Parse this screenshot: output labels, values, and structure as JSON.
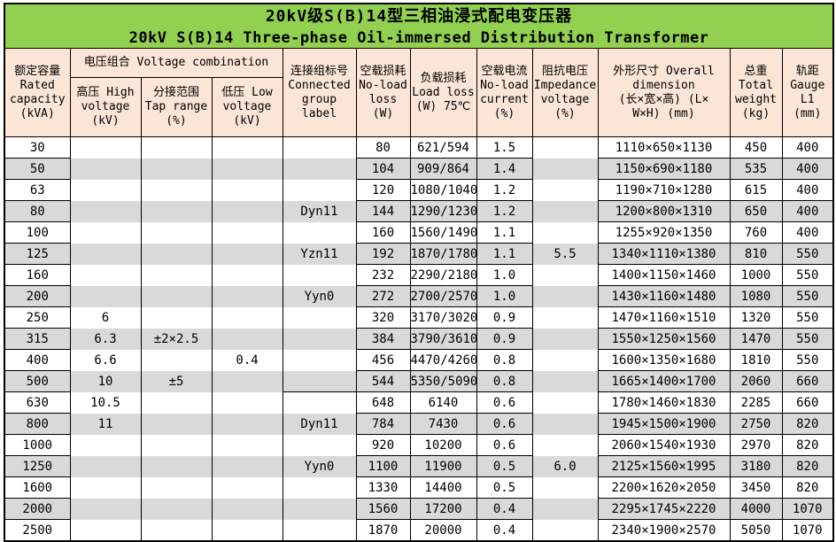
{
  "title": {
    "line1_zh": "20kV级S(B)14型三相油浸式配电变压器",
    "line2_en": "20kV S(B)14 Three-phase Oil-immersed Distribution Transformer"
  },
  "colors": {
    "title_bg": "#92D050",
    "header_bg": "#FBE5D6",
    "stripe_bg": "#D9D9D9",
    "border": "#000000"
  },
  "header": {
    "rated_capacity": "额定容量\nRated\ncapacity\n(kVA)",
    "voltage_combination": "电压组合 Voltage combination",
    "high_voltage": "高压 High\nvoltage\n(kV)",
    "tap_range": "分接范围\nTap range\n(%)",
    "low_voltage": "低压 Low\nvoltage\n(kV)",
    "connected_group": "连接组标号\nConnected\ngroup\nlabel",
    "no_load_loss": "空载损耗\nNo-load\nloss\n(W)",
    "load_loss": "负载损耗\nLoad loss\n(W) 75℃",
    "no_load_current": "空载电流\nNo-load\ncurrent\n(%)",
    "impedance_voltage": "阻抗电压\nImpedance\nvoltage\n(%)",
    "overall_dimension": "外形尺寸 Overall\ndimension\n(长×宽×高) (L×\nW×H) (mm)",
    "total_weight": "总重\nTotal\nweight\n(kg)",
    "gauge": "轨距\nGauge\nL1\n(mm)"
  },
  "columns": [
    "rated-capacity",
    "high-voltage",
    "tap-range",
    "low-voltage",
    "connected-group",
    "no-load-loss",
    "load-loss",
    "no-load-current",
    "impedance-voltage",
    "overall-dimension",
    "total-weight",
    "gauge"
  ],
  "rows": [
    [
      "30",
      "",
      "",
      "",
      "",
      "80",
      "621/594",
      "1.5",
      "",
      "1110×650×1130",
      "450",
      "400"
    ],
    [
      "50",
      "",
      "",
      "",
      "",
      "104",
      "909/864",
      "1.4",
      "",
      "1150×690×1180",
      "535",
      "400"
    ],
    [
      "63",
      "",
      "",
      "",
      "",
      "120",
      "1080/1040",
      "1.2",
      "",
      "1190×710×1280",
      "615",
      "400"
    ],
    [
      "80",
      "",
      "",
      "",
      "Dyn11",
      "144",
      "1290/1230",
      "1.2",
      "",
      "1200×800×1310",
      "650",
      "400"
    ],
    [
      "100",
      "",
      "",
      "",
      "",
      "160",
      "1560/1490",
      "1.1",
      "",
      "1255×920×1350",
      "760",
      "400"
    ],
    [
      "125",
      "",
      "",
      "",
      "Yzn11",
      "192",
      "1870/1780",
      "1.1",
      "5.5",
      "1340×1110×1380",
      "810",
      "550"
    ],
    [
      "160",
      "",
      "",
      "",
      "",
      "232",
      "2290/2180",
      "1.0",
      "",
      "1400×1150×1460",
      "1000",
      "550"
    ],
    [
      "200",
      "",
      "",
      "",
      "Yyn0",
      "272",
      "2700/2570",
      "1.0",
      "",
      "1430×1160×1480",
      "1080",
      "550"
    ],
    [
      "250",
      "6",
      "",
      "",
      "",
      "320",
      "3170/3020",
      "0.9",
      "",
      "1470×1160×1510",
      "1320",
      "550"
    ],
    [
      "315",
      "6.3",
      "±2×2.5",
      "",
      "",
      "384",
      "3790/3610",
      "0.9",
      "",
      "1550×1250×1560",
      "1470",
      "550"
    ],
    [
      "400",
      "6.6",
      "",
      "0.4",
      "",
      "456",
      "4470/4260",
      "0.8",
      "",
      "1600×1350×1680",
      "1810",
      "550"
    ],
    [
      "500",
      "10",
      "±5",
      "",
      "",
      "544",
      "5350/5090",
      "0.8",
      "",
      "1665×1400×1700",
      "2060",
      "660"
    ],
    [
      "630",
      "10.5",
      "",
      "",
      "",
      "648",
      "6140",
      "0.6",
      "",
      "1780×1460×1830",
      "2285",
      "660"
    ],
    [
      "800",
      "11",
      "",
      "",
      "Dyn11",
      "784",
      "7430",
      "0.6",
      "",
      "1945×1500×1900",
      "2750",
      "820"
    ],
    [
      "1000",
      "",
      "",
      "",
      "",
      "920",
      "10200",
      "0.6",
      "",
      "2060×1540×1930",
      "2970",
      "820"
    ],
    [
      "1250",
      "",
      "",
      "",
      "Yyn0",
      "1100",
      "11900",
      "0.5",
      "6.0",
      "2125×1560×1995",
      "3180",
      "820"
    ],
    [
      "1600",
      "",
      "",
      "",
      "",
      "1330",
      "14400",
      "0.5",
      "",
      "2200×1620×2050",
      "3450",
      "820"
    ],
    [
      "2000",
      "",
      "",
      "",
      "",
      "1560",
      "17200",
      "0.4",
      "",
      "2295×1745×2220",
      "4000",
      "1070"
    ],
    [
      "2500",
      "",
      "",
      "",
      "",
      "1870",
      "20000",
      "0.4",
      "",
      "2340×1900×2570",
      "5050",
      "1070"
    ]
  ]
}
